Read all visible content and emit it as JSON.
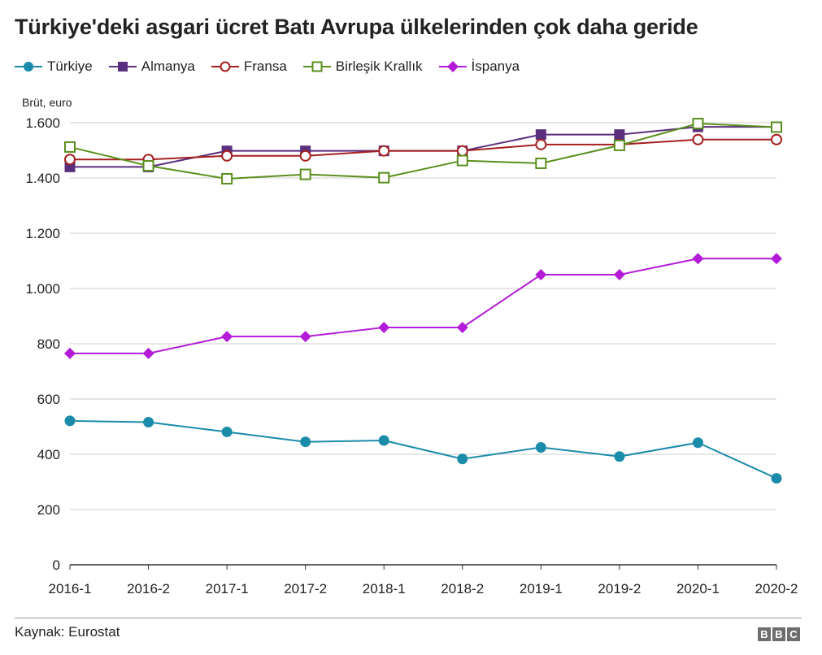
{
  "title": "Türkiye'deki asgari ücret Batı Avrupa ülkelerinden çok daha geride",
  "source": "Kaynak: Eurostat",
  "logo": [
    "B",
    "B",
    "C"
  ],
  "chart_data": {
    "type": "line",
    "title": "Türkiye'deki asgari ücret Batı Avrupa ülkelerinden çok daha geride",
    "ylabel": "Brüt, euro",
    "xlabel": "",
    "ylim": [
      0,
      1600
    ],
    "yticks": [
      0,
      200,
      400,
      600,
      800,
      1000,
      1200,
      1400,
      1600
    ],
    "ytick_labels": [
      "0",
      "200",
      "400",
      "600",
      "800",
      "1.000",
      "1.200",
      "1.400",
      "1.600"
    ],
    "grid": true,
    "legend_position": "top",
    "categories": [
      "2016-1",
      "2016-2",
      "2017-1",
      "2017-2",
      "2018-1",
      "2018-2",
      "2019-1",
      "2019-2",
      "2020-1",
      "2020-2"
    ],
    "series": [
      {
        "name": "Türkiye",
        "color": "#1a8caa",
        "marker": "circle",
        "values": [
          521,
          516,
          481,
          445,
          450,
          383,
          425,
          392,
          442,
          313
        ]
      },
      {
        "name": "Almanya",
        "color": "#5a2f7e",
        "marker": "square",
        "values": [
          1440,
          1440,
          1498,
          1498,
          1498,
          1498,
          1557,
          1557,
          1585,
          1585
        ]
      },
      {
        "name": "Fransa",
        "color": "#a51f1f",
        "marker": "open-circle",
        "values": [
          1467,
          1467,
          1480,
          1480,
          1498,
          1498,
          1521,
          1521,
          1539,
          1539
        ]
      },
      {
        "name": "Birleşik Krallık",
        "color": "#5a8f1c",
        "marker": "open-square",
        "values": [
          1512,
          1444,
          1397,
          1413,
          1401,
          1463,
          1453,
          1518,
          1597,
          1584
        ]
      },
      {
        "name": "İspanya",
        "color": "#b31bd8",
        "marker": "diamond",
        "values": [
          765,
          765,
          826,
          826,
          859,
          859,
          1050,
          1050,
          1108,
          1108
        ]
      }
    ]
  }
}
